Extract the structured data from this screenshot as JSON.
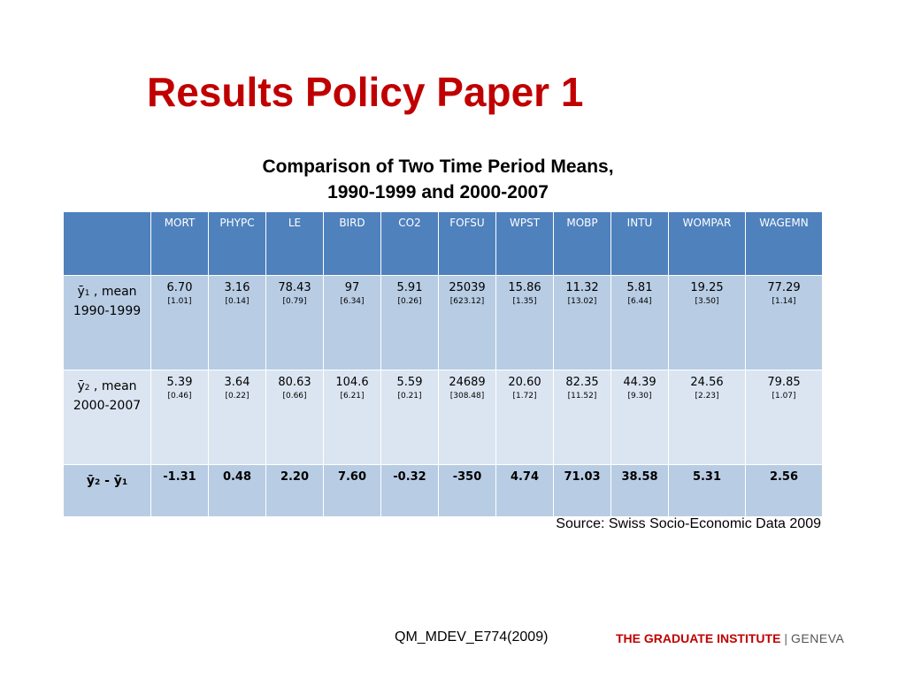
{
  "title": "Results Policy Paper 1",
  "caption": {
    "line1": "Comparison of Two Time Period Means,",
    "line2": "1990-1999 and 2000-2007"
  },
  "table": {
    "columns": [
      "MORT",
      "PHYPC",
      "LE",
      "BIRD",
      "CO2",
      "FOFSU",
      "WPST",
      "MOBP",
      "INTU",
      "WOMPAR",
      "WAGEMN"
    ],
    "row1": {
      "symbol": "ȳ",
      "sub": "1",
      "label_rest": " , mean",
      "period": "1990-1999",
      "means": [
        "6.70",
        "3.16",
        "78.43",
        "97",
        "5.91",
        "25039",
        "15.86",
        "11.32",
        "5.81",
        "19.25",
        "77.29"
      ],
      "se": [
        "[1.01]",
        "[0.14]",
        "[0.79]",
        "[6.34]",
        "[0.26]",
        "[623.12]",
        "[1.35]",
        "[13.02]",
        "[6.44]",
        "[3.50]",
        "[1.14]"
      ]
    },
    "row2": {
      "symbol": "ȳ",
      "sub": "2",
      "label_rest": " , mean",
      "period": "2000-2007",
      "means": [
        "5.39",
        "3.64",
        "80.63",
        "104.6",
        "5.59",
        "24689",
        "20.60",
        "82.35",
        "44.39",
        "24.56",
        "79.85"
      ],
      "se": [
        "[0.46]",
        "[0.22]",
        "[0.66]",
        "[6.21]",
        "[0.21]",
        "[308.48]",
        "[1.72]",
        "[11.52]",
        "[9.30]",
        "[2.23]",
        "[1.07]"
      ]
    },
    "row3": {
      "symbol_a": "ȳ",
      "sub_a": "2",
      "minus": " - ",
      "symbol_b": "ȳ",
      "sub_b": "1",
      "diffs": [
        "-1.31",
        "0.48",
        "2.20",
        "7.60",
        "-0.32",
        "-350",
        "4.74",
        "71.03",
        "38.58",
        "5.31",
        "2.56"
      ]
    }
  },
  "source": "Source: Swiss Socio-Economic Data 2009",
  "footer": {
    "course": "QM_MDEV_E774(2009)",
    "institute": "THE GRADUATE INSTITUTE",
    "separator": "|",
    "city": "GENEVA"
  }
}
